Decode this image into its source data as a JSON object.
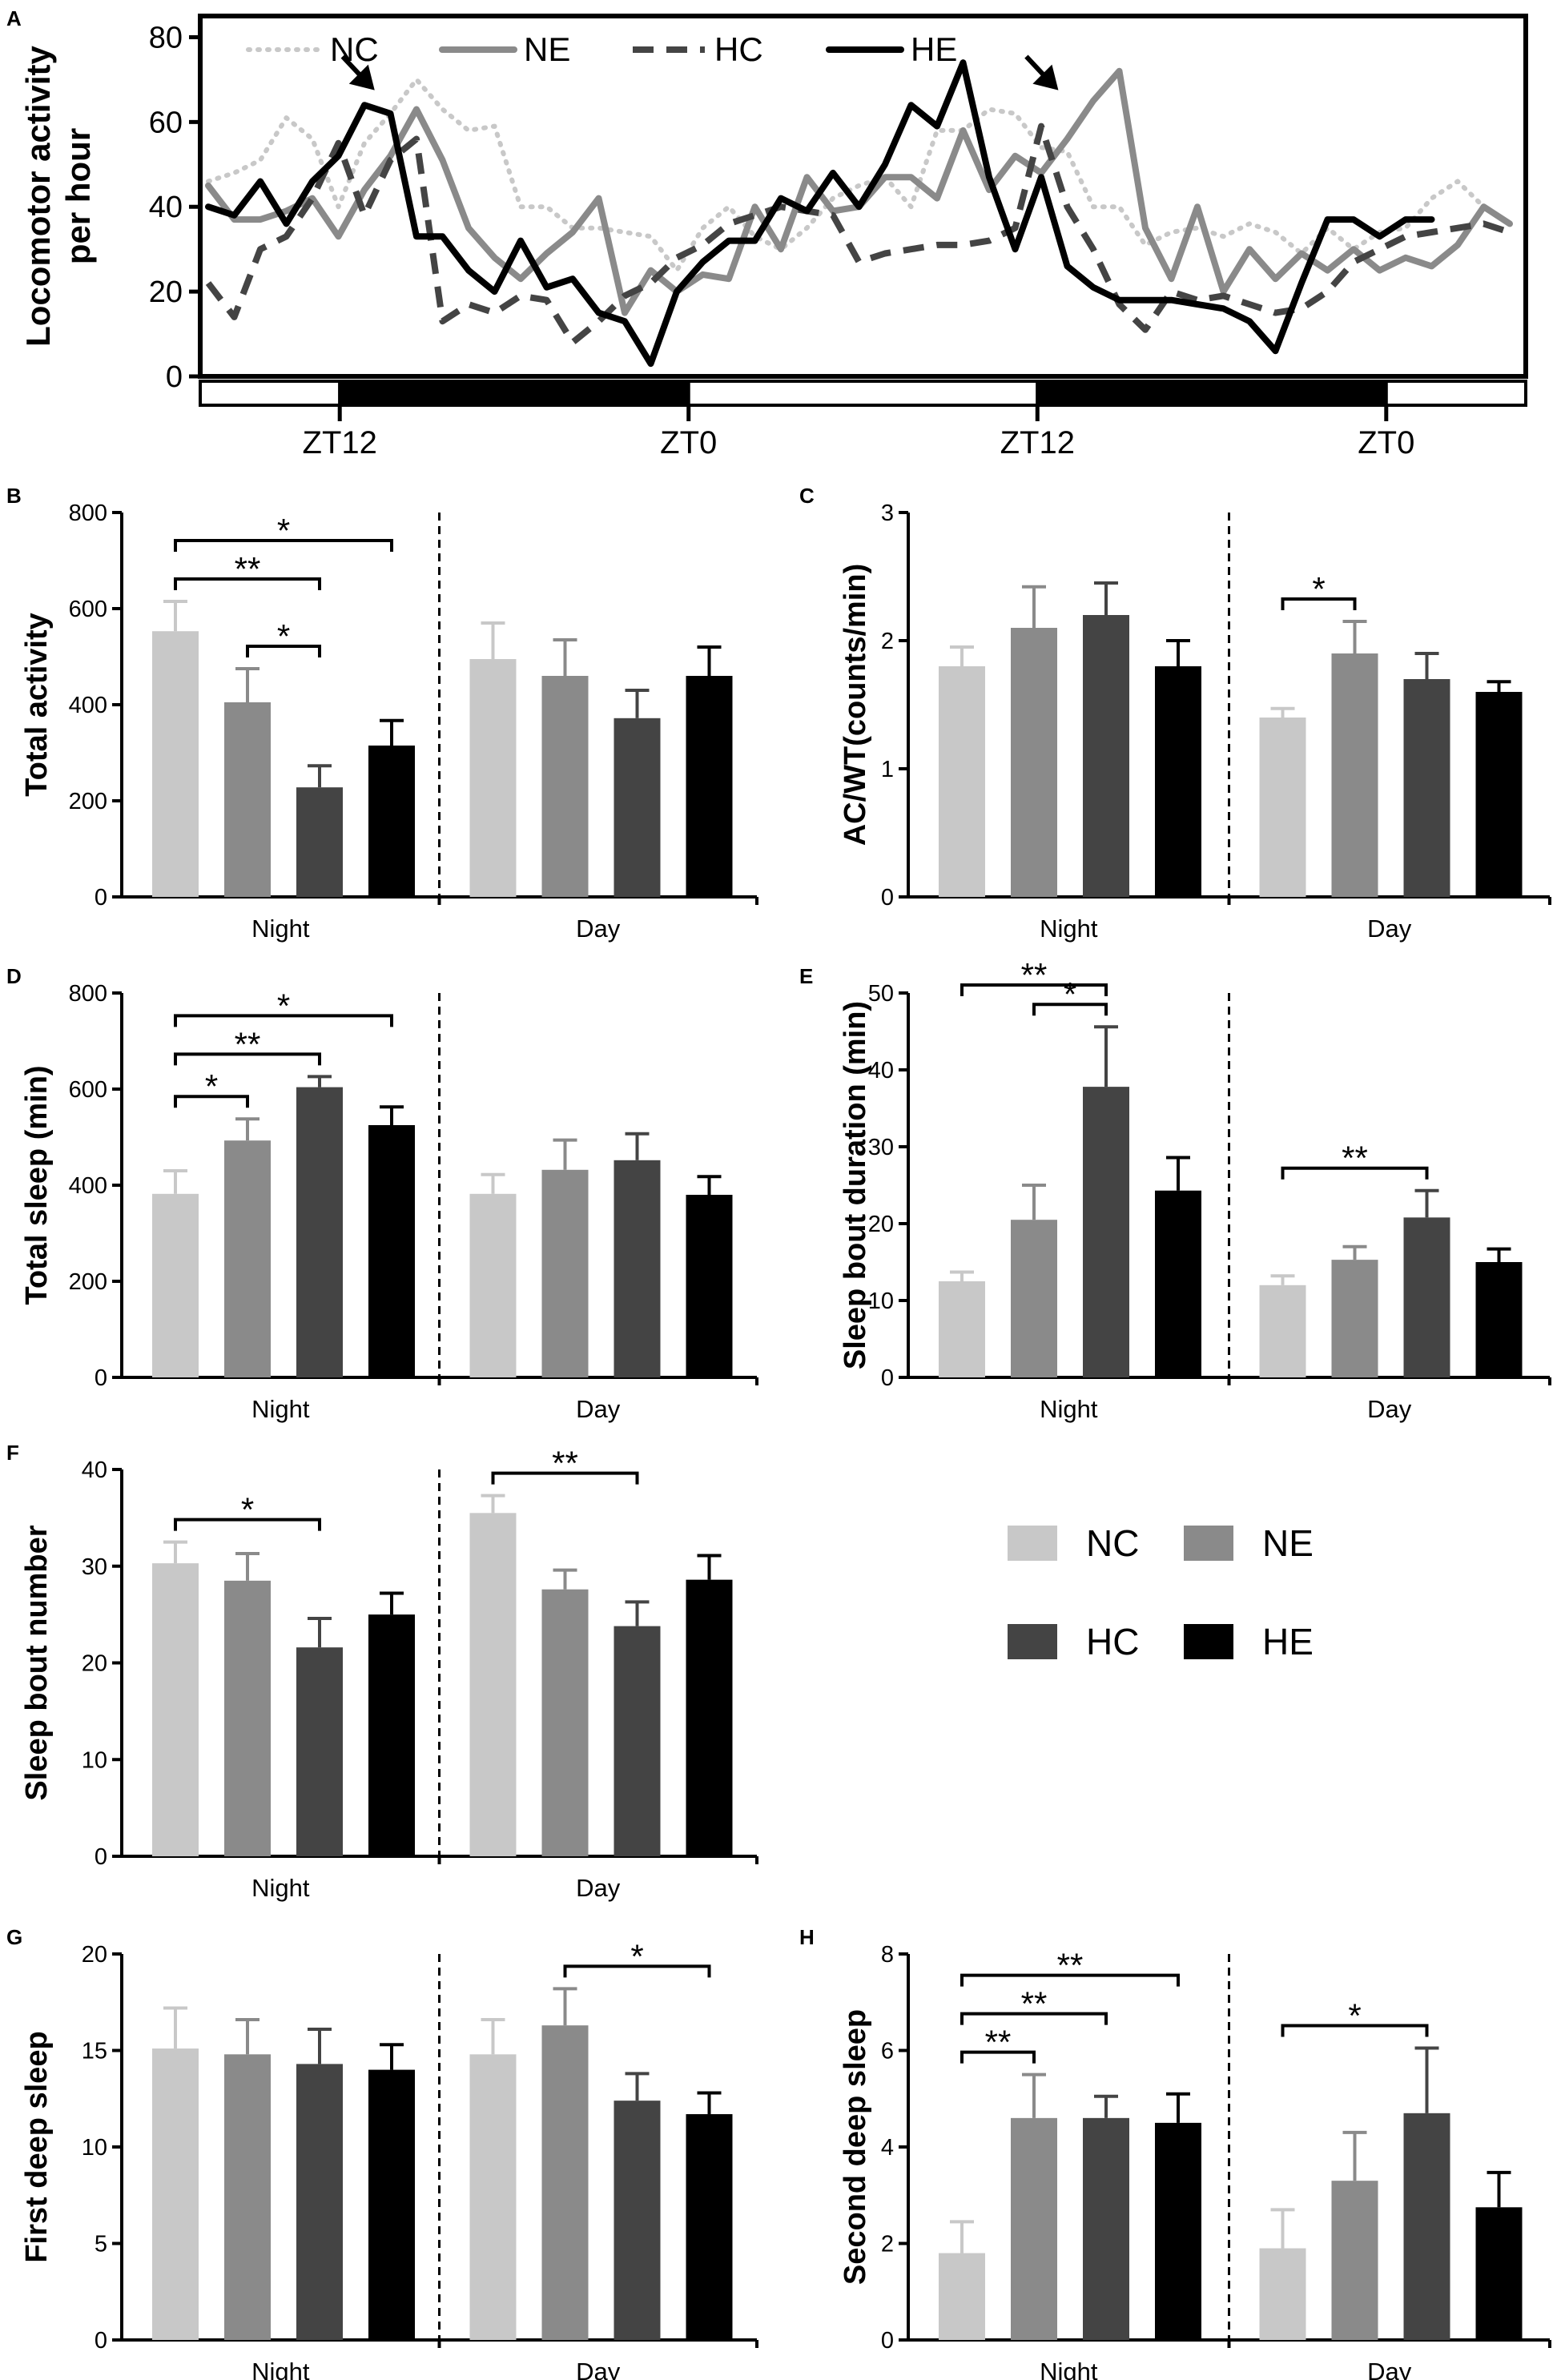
{
  "colors": {
    "NC": "#c8c8c8",
    "NE": "#8a8a8a",
    "HC": "#444444",
    "HE": "#000000"
  },
  "legend": {
    "NC": "NC",
    "NE": "NE",
    "HC": "HC",
    "HE": "HE"
  },
  "chart_data": [
    {
      "panel": "A",
      "type": "line",
      "ylabel_lines": [
        "Locomotor activity",
        "per hour"
      ],
      "ylim": [
        0,
        85
      ],
      "yticks": [
        "0",
        "20",
        "40",
        "60",
        "80"
      ],
      "x_ticks": [
        "ZT12",
        "ZT0",
        "ZT12",
        "ZT0"
      ],
      "x_tick_positions": [
        4,
        14,
        24,
        34
      ],
      "x_range": [
        0,
        38
      ],
      "light_dark_bar": [
        {
          "from": 0,
          "to": 4,
          "dark": false
        },
        {
          "from": 4,
          "to": 14,
          "dark": true
        },
        {
          "from": 14,
          "to": 24,
          "dark": false
        },
        {
          "from": 24,
          "to": 34,
          "dark": true
        },
        {
          "from": 34,
          "to": 38,
          "dark": false
        }
      ],
      "arrows_at": [
        5.0,
        24.6
      ],
      "series": [
        {
          "name": "NC",
          "style": "dotted",
          "values": [
            46,
            48,
            51,
            61,
            56,
            40,
            55,
            62,
            70,
            63,
            58,
            59,
            40,
            40,
            35,
            35,
            34,
            33,
            25,
            35,
            40,
            33,
            30,
            35,
            42,
            45,
            47,
            40,
            58,
            58,
            63,
            62,
            54,
            53,
            40,
            40,
            31,
            34,
            35,
            33,
            36,
            34,
            29,
            35,
            30,
            34,
            35,
            42,
            46,
            40,
            36
          ]
        },
        {
          "name": "NE",
          "style": "solid",
          "values": [
            45,
            37,
            37,
            39,
            42,
            33,
            44,
            52,
            63,
            51,
            35,
            28,
            23,
            29,
            34,
            42,
            15,
            25,
            20,
            24,
            23,
            40,
            30,
            47,
            39,
            40,
            47,
            47,
            42,
            58,
            44,
            52,
            48,
            56,
            65,
            72,
            35,
            23,
            40,
            20,
            30,
            23,
            29,
            25,
            30,
            25,
            28,
            26,
            31,
            40,
            36
          ]
        },
        {
          "name": "HC",
          "style": "dashed",
          "values": [
            22,
            14,
            30,
            33,
            42,
            55,
            38,
            51,
            56,
            13,
            17,
            15,
            19,
            18,
            8,
            13,
            19,
            22,
            28,
            31,
            36,
            38,
            40,
            39,
            38,
            27,
            29,
            30,
            31,
            31,
            32,
            35,
            59,
            40,
            30,
            17,
            11,
            20,
            18,
            19,
            17,
            15,
            16,
            20,
            27,
            30,
            33,
            34,
            35,
            36,
            34
          ]
        },
        {
          "name": "HE",
          "style": "solid-bold",
          "values": [
            40,
            38,
            46,
            36,
            46,
            52,
            64,
            62,
            33,
            33,
            25,
            20,
            32,
            21,
            23,
            15,
            13,
            3,
            20,
            27,
            32,
            32,
            42,
            39,
            48,
            40,
            50,
            64,
            59,
            74,
            47,
            30,
            47,
            26,
            21,
            18,
            18,
            18,
            17,
            16,
            13,
            6,
            22,
            37,
            37,
            33,
            37,
            37,
            null,
            null,
            null
          ]
        }
      ]
    },
    {
      "panel": "B",
      "type": "bar",
      "ylabel": "Total activity",
      "ylim": [
        0,
        800
      ],
      "yticks": [
        "0",
        "200",
        "400",
        "600",
        "800"
      ],
      "groups": [
        "Night",
        "Day"
      ],
      "series": [
        {
          "name": "NC",
          "values": [
            553,
            495
          ],
          "errors": [
            62,
            75
          ]
        },
        {
          "name": "NE",
          "values": [
            405,
            460
          ],
          "errors": [
            70,
            75
          ]
        },
        {
          "name": "HC",
          "values": [
            228,
            372
          ],
          "errors": [
            45,
            58
          ]
        },
        {
          "name": "HE",
          "values": [
            315,
            460
          ],
          "errors": [
            52,
            60
          ]
        }
      ],
      "significance": [
        {
          "group": 0,
          "from": 0,
          "to": 3,
          "label": "*"
        },
        {
          "group": 0,
          "from": 0,
          "to": 2,
          "label": "**"
        },
        {
          "group": 0,
          "from": 1,
          "to": 2,
          "label": "*"
        }
      ]
    },
    {
      "panel": "C",
      "type": "bar",
      "ylabel": "AC/WT(counts/min)",
      "ylim": [
        0,
        3
      ],
      "yticks": [
        "0",
        "1",
        "2",
        "3"
      ],
      "groups": [
        "Night",
        "Day"
      ],
      "series": [
        {
          "name": "NC",
          "values": [
            1.8,
            1.4
          ],
          "errors": [
            0.15,
            0.07
          ]
        },
        {
          "name": "NE",
          "values": [
            2.1,
            1.9
          ],
          "errors": [
            0.32,
            0.25
          ]
        },
        {
          "name": "HC",
          "values": [
            2.2,
            1.7
          ],
          "errors": [
            0.25,
            0.2
          ]
        },
        {
          "name": "HE",
          "values": [
            1.8,
            1.6
          ],
          "errors": [
            0.2,
            0.08
          ]
        }
      ],
      "significance": [
        {
          "group": 1,
          "from": 0,
          "to": 1,
          "label": "*"
        }
      ]
    },
    {
      "panel": "D",
      "type": "bar",
      "ylabel": "Total sleep (min)",
      "ylim": [
        0,
        800
      ],
      "yticks": [
        "0",
        "200",
        "400",
        "600",
        "800"
      ],
      "groups": [
        "Night",
        "Day"
      ],
      "series": [
        {
          "name": "NC",
          "values": [
            382,
            382
          ],
          "errors": [
            48,
            40
          ]
        },
        {
          "name": "NE",
          "values": [
            493,
            432
          ],
          "errors": [
            45,
            62
          ]
        },
        {
          "name": "HC",
          "values": [
            604,
            452
          ],
          "errors": [
            22,
            55
          ]
        },
        {
          "name": "HE",
          "values": [
            525,
            380
          ],
          "errors": [
            38,
            38
          ]
        }
      ],
      "significance": [
        {
          "group": 0,
          "from": 0,
          "to": 3,
          "label": "*"
        },
        {
          "group": 0,
          "from": 0,
          "to": 2,
          "label": "**"
        },
        {
          "group": 0,
          "from": 0,
          "to": 1,
          "label": "*"
        }
      ]
    },
    {
      "panel": "E",
      "type": "bar",
      "ylabel": "Sleep bout duration (min)",
      "ylim": [
        0,
        50
      ],
      "yticks": [
        "0",
        "10",
        "20",
        "30",
        "40",
        "50"
      ],
      "groups": [
        "Night",
        "Day"
      ],
      "series": [
        {
          "name": "NC",
          "values": [
            12.5,
            12.0
          ],
          "errors": [
            1.2,
            1.2
          ]
        },
        {
          "name": "NE",
          "values": [
            20.5,
            15.3
          ],
          "errors": [
            4.5,
            1.7
          ]
        },
        {
          "name": "HC",
          "values": [
            37.8,
            20.8
          ],
          "errors": [
            7.8,
            3.5
          ]
        },
        {
          "name": "HE",
          "values": [
            24.3,
            15.0
          ],
          "errors": [
            4.3,
            1.7
          ]
        }
      ],
      "significance": [
        {
          "group": 0,
          "from": 0,
          "to": 2,
          "label": "**"
        },
        {
          "group": 0,
          "from": 1,
          "to": 2,
          "label": "*"
        },
        {
          "group": 1,
          "from": 0,
          "to": 2,
          "label": "**"
        }
      ]
    },
    {
      "panel": "F",
      "type": "bar",
      "ylabel": "Sleep bout number",
      "ylim": [
        0,
        40
      ],
      "yticks": [
        "0",
        "10",
        "20",
        "30",
        "40"
      ],
      "groups": [
        "Night",
        "Day"
      ],
      "series": [
        {
          "name": "NC",
          "values": [
            30.3,
            35.5
          ],
          "errors": [
            2.2,
            1.8
          ]
        },
        {
          "name": "NE",
          "values": [
            28.5,
            27.6
          ],
          "errors": [
            2.8,
            2.0
          ]
        },
        {
          "name": "HC",
          "values": [
            21.6,
            23.8
          ],
          "errors": [
            3.0,
            2.5
          ]
        },
        {
          "name": "HE",
          "values": [
            25.0,
            28.6
          ],
          "errors": [
            2.2,
            2.5
          ]
        }
      ],
      "significance": [
        {
          "group": 0,
          "from": 0,
          "to": 2,
          "label": "*"
        },
        {
          "group": 1,
          "from": 0,
          "to": 2,
          "label": "**"
        }
      ]
    },
    {
      "panel": "G",
      "type": "bar",
      "ylabel": "First deep sleep",
      "ylim": [
        0,
        20
      ],
      "yticks": [
        "0",
        "5",
        "10",
        "15",
        "20"
      ],
      "groups": [
        "Night",
        "Day"
      ],
      "series": [
        {
          "name": "NC",
          "values": [
            15.1,
            14.8
          ],
          "errors": [
            2.1,
            1.8
          ]
        },
        {
          "name": "NE",
          "values": [
            14.8,
            16.3
          ],
          "errors": [
            1.8,
            1.9
          ]
        },
        {
          "name": "HC",
          "values": [
            14.3,
            12.4
          ],
          "errors": [
            1.8,
            1.4
          ]
        },
        {
          "name": "HE",
          "values": [
            14.0,
            11.7
          ],
          "errors": [
            1.3,
            1.1
          ]
        }
      ],
      "significance": [
        {
          "group": 1,
          "from": 1,
          "to": 3,
          "label": "*"
        }
      ]
    },
    {
      "panel": "H",
      "type": "bar",
      "ylabel": "Second deep sleep",
      "ylim": [
        0,
        8
      ],
      "yticks": [
        "0",
        "2",
        "4",
        "6",
        "8"
      ],
      "groups": [
        "Night",
        "Day"
      ],
      "series": [
        {
          "name": "NC",
          "values": [
            1.8,
            1.9
          ],
          "errors": [
            0.65,
            0.8
          ]
        },
        {
          "name": "NE",
          "values": [
            4.6,
            3.3
          ],
          "errors": [
            0.9,
            1.0
          ]
        },
        {
          "name": "HC",
          "values": [
            4.6,
            4.7
          ],
          "errors": [
            0.45,
            1.35
          ]
        },
        {
          "name": "HE",
          "values": [
            4.5,
            2.75
          ],
          "errors": [
            0.6,
            0.72
          ]
        }
      ],
      "significance": [
        {
          "group": 0,
          "from": 0,
          "to": 3,
          "label": "**"
        },
        {
          "group": 0,
          "from": 0,
          "to": 2,
          "label": "**"
        },
        {
          "group": 0,
          "from": 0,
          "to": 1,
          "label": "**"
        },
        {
          "group": 1,
          "from": 0,
          "to": 2,
          "label": "*"
        }
      ]
    }
  ]
}
